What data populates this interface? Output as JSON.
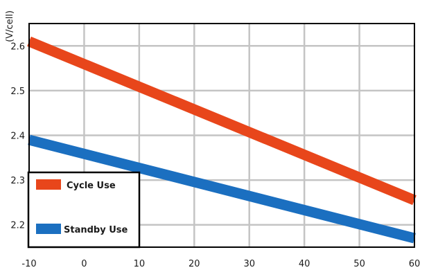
{
  "chart_data": {
    "type": "line",
    "title": "",
    "xlabel": "",
    "ylabel": "(V/cell)",
    "x": [
      -10,
      60
    ],
    "xlim": [
      -10,
      60
    ],
    "ylim": [
      2.15,
      2.65
    ],
    "xticks": [
      -10,
      0,
      10,
      20,
      30,
      40,
      50,
      60
    ],
    "xtick_labels": [
      "-10",
      "0",
      "10",
      "20",
      "30",
      "40",
      "50",
      "60"
    ],
    "yticks": [
      2.2,
      2.3,
      2.4,
      2.5,
      2.6
    ],
    "ytick_labels": [
      "2.2",
      "2.3",
      "2.4",
      "2.5",
      "2.6"
    ],
    "grid": true,
    "legend_position": "bottom-left",
    "series": [
      {
        "name": "Cycle Use",
        "color": "#e8461b",
        "x": [
          -10,
          60
        ],
        "values": [
          2.61,
          2.255
        ]
      },
      {
        "name": "Standby Use",
        "color": "#1b6fc0",
        "x": [
          -10,
          60
        ],
        "values": [
          2.39,
          2.17
        ]
      }
    ]
  }
}
